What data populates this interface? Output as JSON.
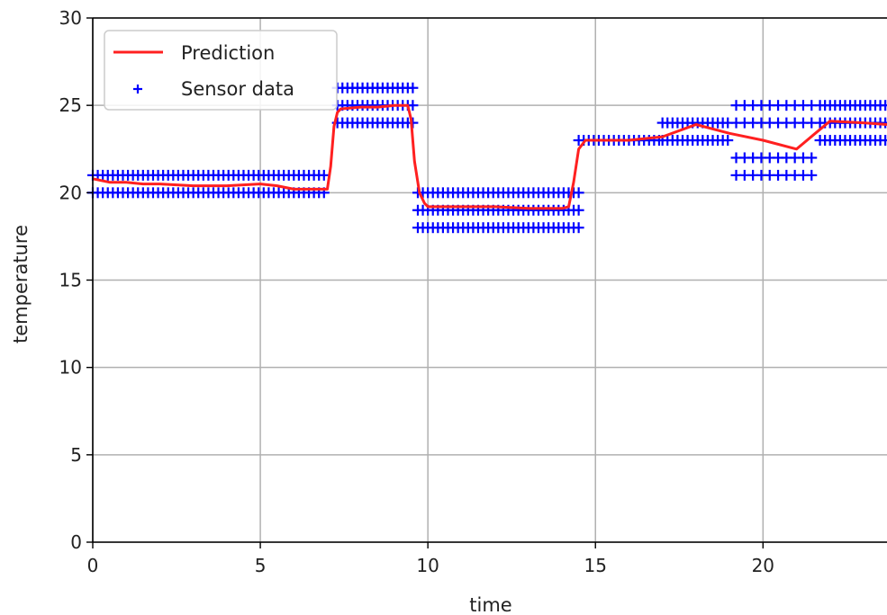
{
  "chart_data": {
    "type": "line",
    "title": "",
    "xlabel": "time",
    "ylabel": "temperature",
    "xlim": [
      0,
      23.7
    ],
    "ylim": [
      0,
      30
    ],
    "x_ticks": [
      0,
      5,
      10,
      15,
      20
    ],
    "y_ticks": [
      0,
      5,
      10,
      15,
      20,
      25,
      30
    ],
    "grid": true,
    "legend_position": "upper-left",
    "series": [
      {
        "name": "Prediction",
        "kind": "line",
        "color": "#ff2020",
        "x": [
          0,
          0.5,
          1,
          1.5,
          2,
          3,
          4,
          5,
          5.5,
          6,
          6.5,
          7,
          7.1,
          7.2,
          7.3,
          7.4,
          8,
          8.5,
          9,
          9.4,
          9.5,
          9.6,
          9.75,
          9.9,
          10,
          11,
          12,
          13,
          14,
          14.2,
          14.35,
          14.5,
          14.7,
          15,
          16,
          17,
          18,
          19,
          20,
          21,
          21.5,
          22,
          23,
          23.7
        ],
        "y": [
          20.8,
          20.6,
          20.6,
          20.5,
          20.5,
          20.4,
          20.4,
          20.5,
          20.4,
          20.2,
          20.2,
          20.2,
          21.5,
          23.8,
          24.6,
          24.8,
          24.9,
          24.9,
          25.0,
          25.0,
          24.2,
          21.8,
          20.0,
          19.4,
          19.2,
          19.2,
          19.2,
          19.1,
          19.1,
          19.2,
          20.6,
          22.5,
          23.0,
          23.0,
          23.0,
          23.2,
          23.9,
          23.4,
          23.0,
          22.5,
          23.3,
          24.1,
          24.0,
          23.9
        ]
      },
      {
        "name": "Sensor data",
        "kind": "scatter",
        "marker": "+",
        "color": "#0000ff",
        "groups": [
          {
            "from": 0,
            "to": 7,
            "step": 0.15,
            "levels": [
              20,
              21
            ]
          },
          {
            "from": 7.3,
            "to": 9.6,
            "step": 0.15,
            "levels": [
              24,
              25,
              26
            ]
          },
          {
            "from": 9.7,
            "to": 14.5,
            "step": 0.15,
            "levels": [
              18,
              19,
              20
            ]
          },
          {
            "from": 14.5,
            "to": 17,
            "step": 0.15,
            "levels": [
              23
            ]
          },
          {
            "from": 17,
            "to": 19,
            "step": 0.15,
            "levels": [
              23,
              24
            ]
          },
          {
            "from": 19.2,
            "to": 21.5,
            "step": 0.25,
            "levels": [
              21,
              22,
              24,
              25
            ]
          },
          {
            "from": 21.7,
            "to": 23.7,
            "step": 0.15,
            "levels": [
              23,
              24,
              25
            ]
          }
        ]
      }
    ]
  }
}
